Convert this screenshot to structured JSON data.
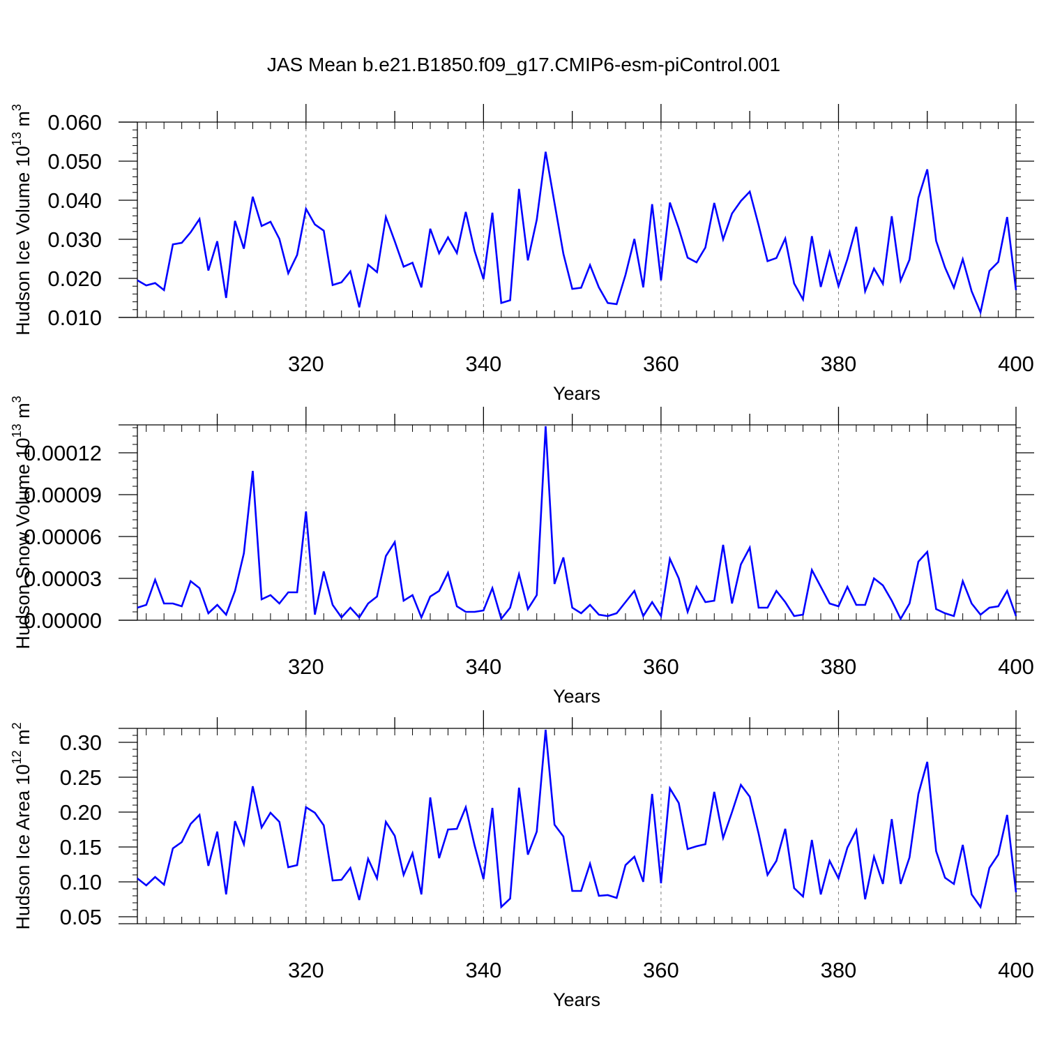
{
  "figure_title": "JAS Mean b.e21.B1850.f09_g17.CMIP6-esm-piControl.001",
  "colors": {
    "line": "#0000ff",
    "axis": "#000000",
    "grid": "#7f7f7f"
  },
  "chart_data": [
    {
      "type": "line",
      "title": "JAS Mean b.e21.B1850.f09_g17.CMIP6-esm-piControl.001",
      "xlabel": "Years",
      "ylabel_main": "Hudson Ice Volume 10",
      "ylabel_sup": "13",
      "ylabel_tail": " m",
      "ylabel_sup2": "3",
      "xlim": [
        301,
        400
      ],
      "ylim": [
        0.01,
        0.06
      ],
      "yticks": [
        0.01,
        0.02,
        0.03,
        0.04,
        0.05,
        0.06
      ],
      "ytick_labels": [
        "0.010",
        "0.020",
        "0.030",
        "0.040",
        "0.050",
        "0.060"
      ],
      "y_minor_step": 0.002,
      "xticks": [
        320,
        340,
        360,
        380,
        400
      ],
      "xtick_labels": [
        "320",
        "340",
        "360",
        "380",
        "400"
      ],
      "x_grid": [
        320,
        340,
        360,
        380
      ],
      "series": [
        {
          "name": "Hudson Ice Volume",
          "x_start": 301,
          "values": [
            0.0195,
            0.0182,
            0.0188,
            0.017,
            0.0287,
            0.0291,
            0.0318,
            0.0352,
            0.022,
            0.0295,
            0.015,
            0.0347,
            0.0276,
            0.0409,
            0.0334,
            0.0345,
            0.0301,
            0.0213,
            0.026,
            0.0378,
            0.0338,
            0.0322,
            0.0183,
            0.019,
            0.0218,
            0.0126,
            0.0235,
            0.0216,
            0.0357,
            0.0295,
            0.023,
            0.024,
            0.0177,
            0.0327,
            0.0264,
            0.0305,
            0.0265,
            0.037,
            0.027,
            0.0198,
            0.0368,
            0.0137,
            0.0144,
            0.0429,
            0.0246,
            0.035,
            0.0524,
            0.0393,
            0.0263,
            0.0173,
            0.0176,
            0.0234,
            0.0177,
            0.0137,
            0.0134,
            0.0209,
            0.0301,
            0.0177,
            0.039,
            0.0195,
            0.0394,
            0.0328,
            0.0253,
            0.0241,
            0.0279,
            0.0393,
            0.03,
            0.0366,
            0.0398,
            0.0422,
            0.0336,
            0.0244,
            0.0252,
            0.0302,
            0.0187,
            0.0146,
            0.0308,
            0.0178,
            0.0267,
            0.018,
            0.0249,
            0.0332,
            0.0167,
            0.0225,
            0.0186,
            0.0359,
            0.0194,
            0.0248,
            0.0406,
            0.0479,
            0.0296,
            0.0228,
            0.0176,
            0.0249,
            0.0167,
            0.0113,
            0.0219,
            0.0242,
            0.0357,
            0.017
          ]
        }
      ]
    },
    {
      "type": "line",
      "xlabel": "Years",
      "ylabel_main": "Hudson Snow Volume 10",
      "ylabel_sup": "13",
      "ylabel_tail": " m",
      "ylabel_sup2": "3",
      "xlim": [
        301,
        400
      ],
      "ylim": [
        0.0,
        0.00014
      ],
      "yticks": [
        0.0,
        3e-05,
        6e-05,
        9e-05,
        0.00012
      ],
      "ytick_labels": [
        "0.00000",
        "0.00003",
        "0.00006",
        "0.00009",
        "0.00012"
      ],
      "y_minor_step": 6e-06,
      "xticks": [
        320,
        340,
        360,
        380,
        400
      ],
      "xtick_labels": [
        "320",
        "340",
        "360",
        "380",
        "400"
      ],
      "x_grid": [
        320,
        340,
        360,
        380
      ],
      "series": [
        {
          "name": "Hudson Snow Volume",
          "x_start": 301,
          "values": [
            9e-06,
            1.1e-05,
            2.9e-05,
            1.2e-05,
            1.2e-05,
            1e-05,
            2.8e-05,
            2.3e-05,
            5e-06,
            1.1e-05,
            4e-06,
            2.1e-05,
            4.8e-05,
            0.000107,
            1.5e-05,
            1.8e-05,
            1.2e-05,
            2e-05,
            2e-05,
            7.8e-05,
            4e-06,
            3.5e-05,
            1.1e-05,
            2e-06,
            9e-06,
            2e-06,
            1.2e-05,
            1.7e-05,
            4.6e-05,
            5.6e-05,
            1.4e-05,
            1.8e-05,
            2e-06,
            1.7e-05,
            2.1e-05,
            3.4e-05,
            1e-05,
            6e-06,
            6e-06,
            7e-06,
            2.3e-05,
            1e-06,
            9e-06,
            3.3e-05,
            8e-06,
            1.8e-05,
            0.000139,
            2.6e-05,
            4.5e-05,
            9e-06,
            5e-06,
            1.1e-05,
            4e-06,
            3e-06,
            5e-06,
            1.3e-05,
            2.1e-05,
            3e-06,
            1.3e-05,
            3e-06,
            4.4e-05,
            3e-05,
            6e-06,
            2.4e-05,
            1.3e-05,
            1.4e-05,
            5.4e-05,
            1.2e-05,
            4e-05,
            5.2e-05,
            9e-06,
            9e-06,
            2.1e-05,
            1.3e-05,
            3e-06,
            4e-06,
            3.6e-05,
            2.4e-05,
            1.2e-05,
            1e-05,
            2.4e-05,
            1.1e-05,
            1.1e-05,
            3e-05,
            2.5e-05,
            1.4e-05,
            1e-06,
            1.2e-05,
            4.2e-05,
            4.9e-05,
            8e-06,
            5e-06,
            3e-06,
            2.8e-05,
            1.2e-05,
            4e-06,
            9e-06,
            1e-05,
            2.1e-05,
            3e-06
          ]
        }
      ]
    },
    {
      "type": "line",
      "xlabel": "Years",
      "ylabel_main": "Hudson Ice Area 10",
      "ylabel_sup": "12",
      "ylabel_tail": " m",
      "ylabel_sup2": "2",
      "xlim": [
        301,
        400
      ],
      "ylim": [
        0.04,
        0.32
      ],
      "yticks": [
        0.05,
        0.1,
        0.15,
        0.2,
        0.25,
        0.3
      ],
      "ytick_labels": [
        "0.05",
        "0.10",
        "0.15",
        "0.20",
        "0.25",
        "0.30"
      ],
      "y_minor_step": 0.01,
      "xticks": [
        320,
        340,
        360,
        380,
        400
      ],
      "xtick_labels": [
        "320",
        "340",
        "360",
        "380",
        "400"
      ],
      "x_grid": [
        320,
        340,
        360,
        380
      ],
      "series": [
        {
          "name": "Hudson Ice Area",
          "x_start": 301,
          "values": [
            0.105,
            0.095,
            0.107,
            0.096,
            0.148,
            0.157,
            0.183,
            0.196,
            0.123,
            0.172,
            0.082,
            0.187,
            0.154,
            0.237,
            0.178,
            0.199,
            0.186,
            0.121,
            0.124,
            0.207,
            0.199,
            0.181,
            0.102,
            0.103,
            0.12,
            0.074,
            0.133,
            0.105,
            0.186,
            0.166,
            0.11,
            0.141,
            0.082,
            0.221,
            0.134,
            0.175,
            0.176,
            0.207,
            0.152,
            0.104,
            0.206,
            0.064,
            0.076,
            0.235,
            0.139,
            0.172,
            0.318,
            0.182,
            0.165,
            0.087,
            0.087,
            0.126,
            0.08,
            0.081,
            0.077,
            0.124,
            0.136,
            0.1,
            0.226,
            0.098,
            0.234,
            0.213,
            0.147,
            0.151,
            0.154,
            0.229,
            0.163,
            0.2,
            0.239,
            0.222,
            0.169,
            0.11,
            0.13,
            0.176,
            0.091,
            0.079,
            0.16,
            0.082,
            0.13,
            0.105,
            0.149,
            0.174,
            0.075,
            0.136,
            0.097,
            0.19,
            0.097,
            0.135,
            0.226,
            0.272,
            0.144,
            0.106,
            0.097,
            0.153,
            0.082,
            0.064,
            0.12,
            0.139,
            0.196,
            0.085
          ]
        }
      ]
    }
  ]
}
